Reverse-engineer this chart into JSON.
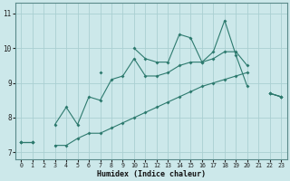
{
  "xlabel": "Humidex (Indice chaleur)",
  "x": [
    0,
    1,
    2,
    3,
    4,
    5,
    6,
    7,
    8,
    9,
    10,
    11,
    12,
    13,
    14,
    15,
    16,
    17,
    18,
    19,
    20,
    21,
    22,
    23
  ],
  "line_max": [
    7.3,
    7.3,
    null,
    null,
    null,
    null,
    null,
    9.3,
    null,
    null,
    10.0,
    9.7,
    9.6,
    9.6,
    10.4,
    10.3,
    9.6,
    9.9,
    10.8,
    9.8,
    8.9,
    null,
    8.7,
    8.6
  ],
  "line_mean": [
    7.3,
    7.3,
    null,
    7.8,
    8.3,
    7.8,
    8.6,
    8.5,
    9.1,
    9.2,
    9.7,
    9.2,
    9.2,
    9.3,
    9.5,
    9.6,
    9.6,
    9.7,
    9.9,
    9.9,
    9.5,
    null,
    8.7,
    8.6
  ],
  "line_min": [
    7.3,
    7.3,
    null,
    7.2,
    7.2,
    7.4,
    7.55,
    7.55,
    7.7,
    7.85,
    8.0,
    8.15,
    8.3,
    8.45,
    8.6,
    8.75,
    8.9,
    9.0,
    9.1,
    9.2,
    9.3,
    null,
    8.7,
    8.6
  ],
  "color": "#2d7a6e",
  "bg_color": "#cce8ea",
  "grid_color": "#aacfd2",
  "ylim": [
    6.8,
    11.3
  ],
  "xlim": [
    -0.5,
    23.5
  ],
  "yticks": [
    7,
    8,
    9,
    10,
    11
  ],
  "xticks": [
    0,
    1,
    2,
    3,
    4,
    5,
    6,
    7,
    8,
    9,
    10,
    11,
    12,
    13,
    14,
    15,
    16,
    17,
    18,
    19,
    20,
    21,
    22,
    23
  ]
}
